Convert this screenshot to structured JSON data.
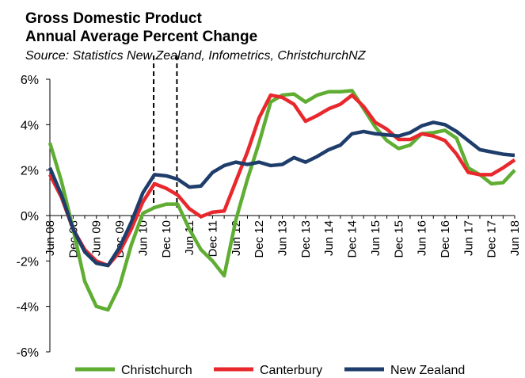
{
  "chart_data": {
    "type": "line",
    "title": "Gross Domestic Product",
    "subtitle": "Annual Average Percent Change",
    "source": "Source: Statistics New Zealand, Infometrics, ChristchurchNZ",
    "categories": [
      "Jun 08",
      null,
      "Dec 08",
      null,
      "Jun 09",
      null,
      "Dec 09",
      null,
      "Jun 10",
      null,
      "Dec 10",
      null,
      "Jun 11",
      null,
      "Dec 11",
      null,
      "Jun 12",
      null,
      "Dec 12",
      null,
      "Jun 13",
      null,
      "Dec 13",
      null,
      "Jun 14",
      null,
      "Dec 14",
      null,
      "Jun 15",
      null,
      "Dec 15",
      null,
      "Jun 16",
      null,
      "Dec 16",
      null,
      "Jun 17",
      null,
      "Dec 17",
      null,
      "Jun 18"
    ],
    "series": [
      {
        "name": "Christchurch",
        "color": "#5fad32",
        "values": [
          3.2,
          1.5,
          -0.6,
          -2.9,
          -4.0,
          -4.15,
          -3.1,
          -1.3,
          0.1,
          0.35,
          0.5,
          0.5,
          -0.6,
          -1.5,
          -2.0,
          -2.65,
          -0.2,
          1.6,
          3.2,
          5.0,
          5.3,
          5.35,
          5.0,
          5.3,
          5.45,
          5.45,
          5.5,
          4.7,
          3.9,
          3.3,
          2.95,
          3.1,
          3.6,
          3.65,
          3.75,
          3.4,
          2.1,
          1.8,
          1.4,
          1.45,
          2.0
        ]
      },
      {
        "name": "Canterbury",
        "color": "#e8282c",
        "values": [
          1.8,
          0.8,
          -0.6,
          -1.5,
          -2.0,
          -2.2,
          -1.6,
          -0.6,
          0.6,
          1.4,
          1.2,
          0.9,
          0.3,
          -0.05,
          0.15,
          0.2,
          1.5,
          2.8,
          4.3,
          5.3,
          5.2,
          4.9,
          4.15,
          4.4,
          4.7,
          4.9,
          5.3,
          4.8,
          4.1,
          3.8,
          3.35,
          3.35,
          3.6,
          3.5,
          3.3,
          2.7,
          1.9,
          1.8,
          1.8,
          2.1,
          2.45
        ]
      },
      {
        "name": "New Zealand",
        "color": "#1f3d6b",
        "values": [
          2.1,
          0.9,
          -0.6,
          -1.6,
          -2.1,
          -2.2,
          -1.4,
          -0.3,
          1.0,
          1.8,
          1.75,
          1.6,
          1.25,
          1.3,
          1.9,
          2.2,
          2.35,
          2.25,
          2.35,
          2.2,
          2.25,
          2.55,
          2.35,
          2.6,
          2.9,
          3.1,
          3.6,
          3.7,
          3.6,
          3.55,
          3.5,
          3.65,
          3.95,
          4.1,
          4.0,
          3.7,
          3.3,
          2.9,
          2.8,
          2.7,
          2.65
        ]
      }
    ],
    "ylim": [
      -6,
      6
    ],
    "yticks": [
      {
        "value": -6,
        "label": "-6%"
      },
      {
        "value": -4,
        "label": "-4%"
      },
      {
        "value": -2,
        "label": "-2%"
      },
      {
        "value": 0,
        "label": "0%"
      },
      {
        "value": 2,
        "label": "2%"
      },
      {
        "value": 4,
        "label": "4%"
      },
      {
        "value": 6,
        "label": "6%"
      }
    ],
    "legend": "bottom"
  }
}
